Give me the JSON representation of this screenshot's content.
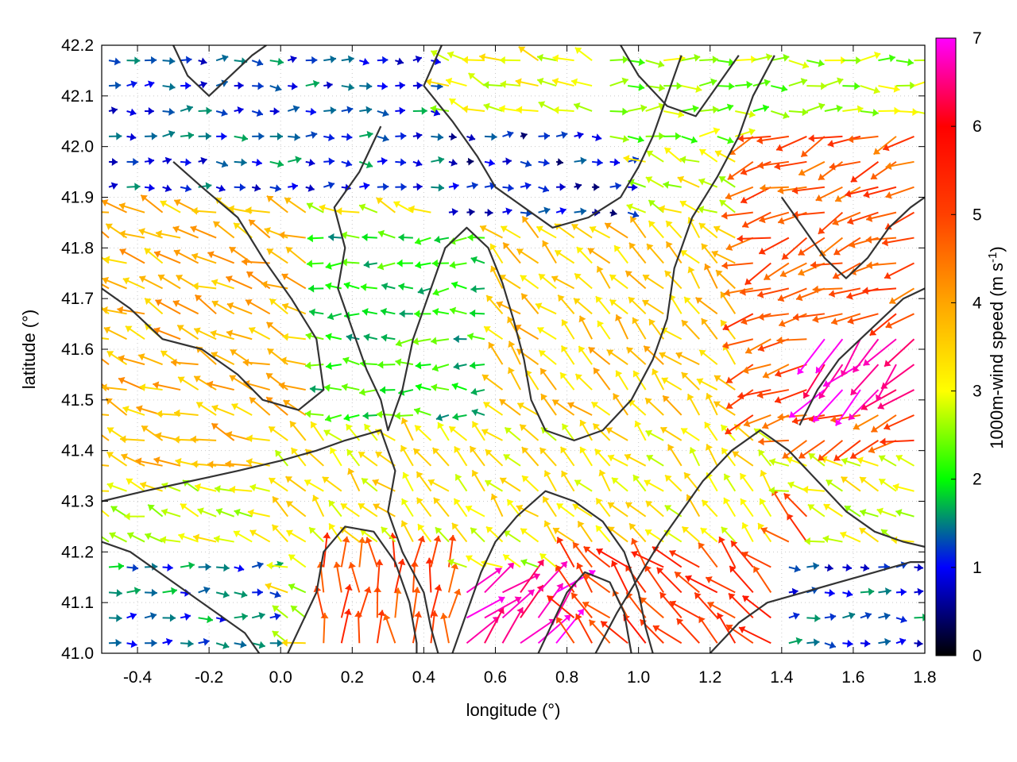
{
  "chart_data": {
    "type": "quiver",
    "xlabel": "longitude (°)",
    "ylabel": "latitude (°)",
    "xlim": [
      -0.5,
      1.8
    ],
    "ylim": [
      41.0,
      42.2
    ],
    "xticks": [
      "-0.4",
      "-0.2",
      "0.0",
      "0.2",
      "0.4",
      "0.6",
      "0.8",
      "1.0",
      "1.2",
      "1.4",
      "1.6",
      "1.8"
    ],
    "yticks": [
      "41.0",
      "41.1",
      "41.2",
      "41.3",
      "41.4",
      "41.5",
      "41.6",
      "41.7",
      "41.8",
      "41.9",
      "42.0",
      "42.1",
      "42.2"
    ],
    "colorbar": {
      "label": "1000m-wind speed (m s",
      "label_superscript": "-1",
      "label_suffix": ")",
      "range": [
        0,
        7
      ],
      "ticks": [
        "0",
        "1",
        "2",
        "3",
        "4",
        "5",
        "6",
        "7"
      ],
      "stops": [
        {
          "value": 0,
          "color": "#000000"
        },
        {
          "value": 1,
          "color": "#0000ff"
        },
        {
          "value": 2,
          "color": "#00ff00"
        },
        {
          "value": 3,
          "color": "#ffff00"
        },
        {
          "value": 4,
          "color": "#ffa500"
        },
        {
          "value": 5,
          "color": "#ff4000"
        },
        {
          "value": 6,
          "color": "#ff0000"
        },
        {
          "value": 7,
          "color": "#ff00ff"
        }
      ]
    },
    "wind_regimes": [
      {
        "lon_range": [
          -0.5,
          0.45
        ],
        "lat_range": [
          41.9,
          42.2
        ],
        "speed": 1.2,
        "direction": "east"
      },
      {
        "lon_range": [
          0.45,
          1.0
        ],
        "lat_range": [
          41.8,
          42.05
        ],
        "speed": 0.9,
        "direction": "east"
      },
      {
        "lon_range": [
          0.9,
          1.8
        ],
        "lat_range": [
          42.0,
          42.2
        ],
        "speed": 2.6,
        "direction": "east"
      },
      {
        "lon_range": [
          -0.5,
          0.1
        ],
        "lat_range": [
          41.35,
          41.9
        ],
        "speed": 3.8,
        "direction": "west-northwest"
      },
      {
        "lon_range": [
          0.1,
          0.6
        ],
        "lat_range": [
          41.45,
          41.85
        ],
        "speed": 2.0,
        "direction": "west"
      },
      {
        "lon_range": [
          0.6,
          1.4
        ],
        "lat_range": [
          41.4,
          41.85
        ],
        "speed": 3.6,
        "direction": "northwest"
      },
      {
        "lon_range": [
          1.3,
          1.8
        ],
        "lat_range": [
          41.4,
          42.05
        ],
        "speed": 4.8,
        "direction": "west-southwest"
      },
      {
        "lon_range": [
          1.5,
          1.8
        ],
        "lat_range": [
          41.5,
          41.65
        ],
        "speed": 6.8,
        "direction": "southwest"
      },
      {
        "lon_range": [
          0.1,
          0.5
        ],
        "lat_range": [
          41.0,
          41.3
        ],
        "speed": 5.0,
        "direction": "north"
      },
      {
        "lon_range": [
          0.5,
          0.8
        ],
        "lat_range": [
          41.0,
          41.15
        ],
        "speed": 6.8,
        "direction": "northeast"
      },
      {
        "lon_range": [
          0.8,
          1.5
        ],
        "lat_range": [
          41.0,
          41.3
        ],
        "speed": 5.2,
        "direction": "northwest"
      },
      {
        "lon_range": [
          -0.5,
          0.0
        ],
        "lat_range": [
          41.0,
          41.2
        ],
        "speed": 1.4,
        "direction": "east"
      },
      {
        "lon_range": [
          1.4,
          1.8
        ],
        "lat_range": [
          41.0,
          41.2
        ],
        "speed": 1.2,
        "direction": "east"
      },
      {
        "lon_range": [
          0.0,
          1.4
        ],
        "lat_range": [
          41.2,
          41.45
        ],
        "speed": 3.2,
        "direction": "northwest"
      }
    ],
    "contours": [
      [
        [
          -0.5,
          41.72
        ],
        [
          -0.42,
          41.68
        ],
        [
          -0.33,
          41.62
        ],
        [
          -0.22,
          41.6
        ],
        [
          -0.12,
          41.55
        ],
        [
          -0.05,
          41.5
        ],
        [
          0.05,
          41.48
        ],
        [
          0.12,
          41.52
        ],
        [
          0.1,
          41.62
        ],
        [
          0.03,
          41.7
        ],
        [
          -0.05,
          41.78
        ],
        [
          -0.12,
          41.86
        ],
        [
          -0.22,
          41.92
        ],
        [
          -0.3,
          41.97
        ]
      ],
      [
        [
          -0.5,
          41.3
        ],
        [
          -0.38,
          41.32
        ],
        [
          -0.25,
          41.34
        ],
        [
          -0.12,
          41.36
        ],
        [
          0.0,
          41.38
        ],
        [
          0.1,
          41.4
        ],
        [
          0.18,
          41.42
        ],
        [
          0.28,
          41.44
        ],
        [
          0.32,
          41.36
        ],
        [
          0.3,
          41.28
        ],
        [
          0.34,
          41.2
        ],
        [
          0.4,
          41.12
        ],
        [
          0.42,
          41.05
        ],
        [
          0.44,
          41.0
        ]
      ],
      [
        [
          0.28,
          42.04
        ],
        [
          0.22,
          41.95
        ],
        [
          0.15,
          41.88
        ],
        [
          0.18,
          41.8
        ],
        [
          0.16,
          41.72
        ],
        [
          0.2,
          41.64
        ],
        [
          0.24,
          41.56
        ],
        [
          0.28,
          41.5
        ],
        [
          0.3,
          41.44
        ],
        [
          0.34,
          41.52
        ],
        [
          0.37,
          41.62
        ],
        [
          0.42,
          41.72
        ],
        [
          0.46,
          41.8
        ],
        [
          0.52,
          41.84
        ],
        [
          0.58,
          41.8
        ],
        [
          0.62,
          41.73
        ],
        [
          0.65,
          41.66
        ],
        [
          0.68,
          41.58
        ],
        [
          0.7,
          41.5
        ],
        [
          0.74,
          41.44
        ],
        [
          0.82,
          41.42
        ],
        [
          0.9,
          41.44
        ],
        [
          0.98,
          41.5
        ],
        [
          1.04,
          41.58
        ],
        [
          1.08,
          41.66
        ],
        [
          1.1,
          41.76
        ],
        [
          1.15,
          41.86
        ],
        [
          1.22,
          41.94
        ],
        [
          1.28,
          42.02
        ],
        [
          1.32,
          42.1
        ],
        [
          1.38,
          42.18
        ]
      ],
      [
        [
          0.45,
          42.2
        ],
        [
          0.4,
          42.12
        ],
        [
          0.48,
          42.05
        ],
        [
          0.55,
          41.98
        ],
        [
          0.6,
          41.92
        ],
        [
          0.68,
          41.88
        ],
        [
          0.76,
          41.84
        ],
        [
          0.86,
          41.86
        ],
        [
          0.95,
          41.9
        ],
        [
          1.0,
          41.96
        ],
        [
          1.04,
          42.02
        ],
        [
          1.08,
          42.1
        ],
        [
          1.12,
          42.18
        ]
      ],
      [
        [
          0.95,
          42.2
        ],
        [
          1.0,
          42.14
        ],
        [
          1.08,
          42.08
        ],
        [
          1.16,
          42.06
        ],
        [
          1.22,
          42.12
        ],
        [
          1.28,
          42.18
        ]
      ],
      [
        [
          0.48,
          41.0
        ],
        [
          0.52,
          41.08
        ],
        [
          0.56,
          41.16
        ],
        [
          0.6,
          41.22
        ],
        [
          0.66,
          41.27
        ],
        [
          0.74,
          41.32
        ],
        [
          0.82,
          41.3
        ],
        [
          0.9,
          41.26
        ],
        [
          0.96,
          41.2
        ],
        [
          1.0,
          41.12
        ],
        [
          1.02,
          41.05
        ],
        [
          1.04,
          41.0
        ]
      ],
      [
        [
          0.72,
          41.0
        ],
        [
          0.76,
          41.06
        ],
        [
          0.8,
          41.12
        ],
        [
          0.85,
          41.16
        ],
        [
          0.92,
          41.14
        ],
        [
          0.96,
          41.08
        ],
        [
          0.98,
          41.0
        ]
      ],
      [
        [
          0.88,
          41.0
        ],
        [
          0.94,
          41.08
        ],
        [
          1.0,
          41.15
        ],
        [
          1.06,
          41.22
        ],
        [
          1.12,
          41.28
        ],
        [
          1.18,
          41.34
        ],
        [
          1.26,
          41.4
        ],
        [
          1.34,
          41.44
        ],
        [
          1.42,
          41.4
        ],
        [
          1.5,
          41.34
        ],
        [
          1.58,
          41.28
        ],
        [
          1.66,
          41.24
        ],
        [
          1.74,
          41.22
        ],
        [
          1.8,
          41.21
        ]
      ],
      [
        [
          1.2,
          41.0
        ],
        [
          1.28,
          41.06
        ],
        [
          1.36,
          41.1
        ],
        [
          1.46,
          41.12
        ],
        [
          1.56,
          41.14
        ],
        [
          1.66,
          41.16
        ],
        [
          1.76,
          41.18
        ],
        [
          1.8,
          41.18
        ]
      ],
      [
        [
          1.45,
          41.45
        ],
        [
          1.5,
          41.52
        ],
        [
          1.56,
          41.58
        ],
        [
          1.62,
          41.62
        ],
        [
          1.68,
          41.66
        ],
        [
          1.74,
          41.7
        ],
        [
          1.8,
          41.72
        ]
      ],
      [
        [
          1.4,
          41.9
        ],
        [
          1.46,
          41.84
        ],
        [
          1.52,
          41.78
        ],
        [
          1.58,
          41.74
        ],
        [
          1.64,
          41.78
        ],
        [
          1.7,
          41.84
        ],
        [
          1.76,
          41.88
        ],
        [
          1.8,
          41.9
        ]
      ],
      [
        [
          0.02,
          41.0
        ],
        [
          0.06,
          41.06
        ],
        [
          0.1,
          41.12
        ],
        [
          0.12,
          41.2
        ],
        [
          0.18,
          41.25
        ],
        [
          0.26,
          41.24
        ],
        [
          0.32,
          41.18
        ],
        [
          0.36,
          41.1
        ],
        [
          0.38,
          41.02
        ],
        [
          0.38,
          41.0
        ]
      ],
      [
        [
          -0.5,
          41.22
        ],
        [
          -0.42,
          41.2
        ],
        [
          -0.34,
          41.16
        ],
        [
          -0.26,
          41.12
        ],
        [
          -0.18,
          41.08
        ],
        [
          -0.1,
          41.04
        ],
        [
          -0.06,
          41.0
        ]
      ],
      [
        [
          -0.3,
          42.2
        ],
        [
          -0.26,
          42.14
        ],
        [
          -0.2,
          42.1
        ],
        [
          -0.14,
          42.14
        ],
        [
          -0.08,
          42.18
        ],
        [
          -0.04,
          42.2
        ]
      ]
    ]
  }
}
